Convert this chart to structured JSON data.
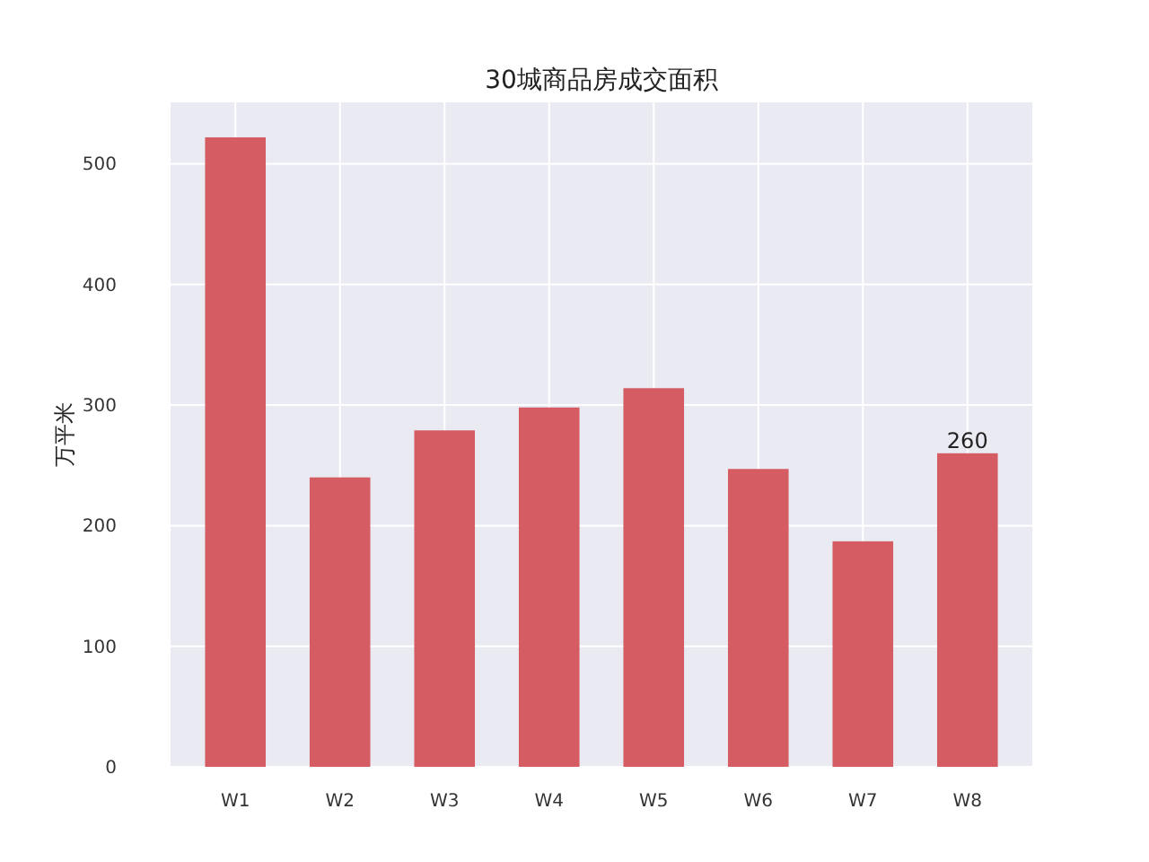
{
  "chart_data": {
    "type": "bar",
    "title": "30城商品房成交面积",
    "ylabel": "万平米",
    "categories": [
      "W1",
      "W2",
      "W3",
      "W4",
      "W5",
      "W6",
      "W7",
      "W8"
    ],
    "values": [
      522,
      240,
      279,
      298,
      314,
      247,
      187,
      260
    ],
    "value_labels": [
      null,
      null,
      null,
      null,
      null,
      null,
      null,
      "260"
    ],
    "color": "#d55c63",
    "ylim": [
      0,
      551
    ],
    "yticks": [
      0,
      100,
      200,
      300,
      400,
      500
    ],
    "grid": true
  }
}
